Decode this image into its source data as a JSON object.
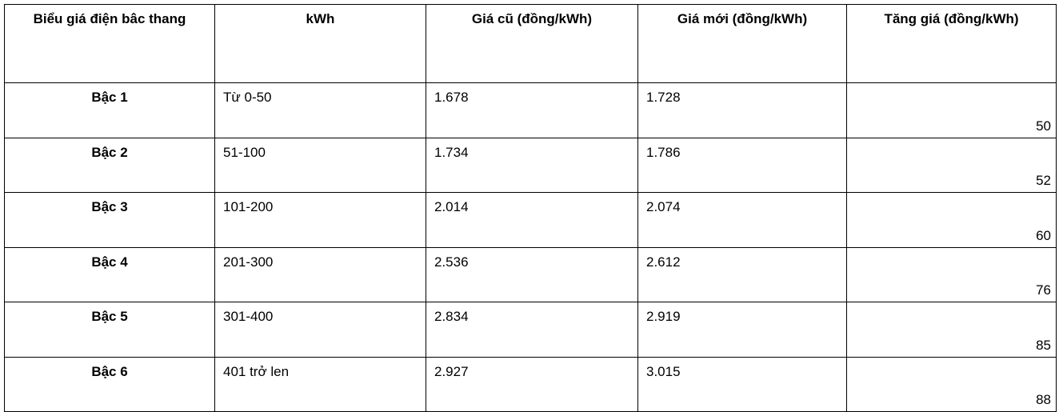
{
  "table": {
    "headers": [
      "Biểu giá điện bâc thang",
      "kWh",
      "Giá cũ (đồng/kWh)",
      "Giá mới (đồng/kWh)",
      "Tăng giá (đồng/kWh)"
    ],
    "rows": [
      [
        "Bậc 1",
        "Từ 0-50",
        "1.678",
        "1.728",
        "50"
      ],
      [
        "Bậc 2",
        "51-100",
        "1.734",
        "1.786",
        "52"
      ],
      [
        "Bậc 3",
        "101-200",
        "2.014",
        "2.074",
        "60"
      ],
      [
        "Bậc 4",
        "201-300",
        "2.536",
        "2.612",
        "76"
      ],
      [
        "Bậc 5",
        "301-400",
        "2.834",
        "2.919",
        "85"
      ],
      [
        "Bậc 6",
        "401 trở len",
        "2.927",
        "3.015",
        "88"
      ]
    ]
  }
}
